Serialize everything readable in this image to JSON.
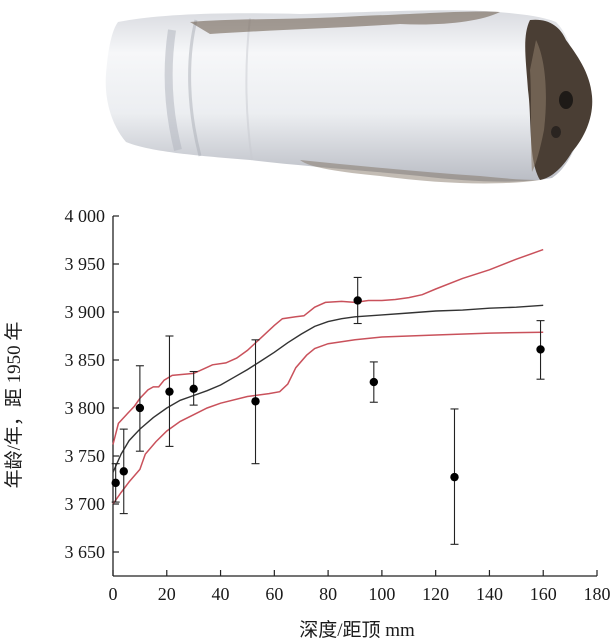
{
  "photo": {
    "subject": "sample-core-photograph",
    "colors": {
      "body": "#f2f3f5",
      "shadow": "#c9ccd3",
      "stain": "#5a4a3a",
      "dark": "#2a2420"
    }
  },
  "chart_data": {
    "type": "scatter",
    "xlabel": "深度/距顶 mm",
    "ylabel": "年龄/年，距 1950 年",
    "xlim": [
      0,
      180
    ],
    "ylim": [
      3625,
      4000
    ],
    "x_ticks": [
      0,
      20,
      40,
      60,
      80,
      100,
      120,
      140,
      160,
      180
    ],
    "x_tick_labels": [
      "0",
      "20",
      "40",
      "60",
      "80",
      "100",
      "120",
      "140",
      "160",
      "180"
    ],
    "y_ticks": [
      3650,
      3700,
      3750,
      3800,
      3850,
      3900,
      3950,
      4000
    ],
    "y_tick_labels": [
      "3 650",
      "3 700",
      "3 750",
      "3 800",
      "3 850",
      "3 900",
      "3 950",
      "4 000"
    ],
    "grid": false,
    "points": [
      {
        "x": 1,
        "y": 3722,
        "err_low": 3702,
        "err_high": 3742
      },
      {
        "x": 4,
        "y": 3734,
        "err_low": 3690,
        "err_high": 3778
      },
      {
        "x": 10,
        "y": 3800,
        "err_low": 3755,
        "err_high": 3844
      },
      {
        "x": 21,
        "y": 3817,
        "err_low": 3760,
        "err_high": 3875
      },
      {
        "x": 30,
        "y": 3820,
        "err_low": 3803,
        "err_high": 3838
      },
      {
        "x": 53,
        "y": 3807,
        "err_low": 3742,
        "err_high": 3871
      },
      {
        "x": 91,
        "y": 3912,
        "err_low": 3888,
        "err_high": 3936
      },
      {
        "x": 97,
        "y": 3827,
        "err_low": 3806,
        "err_high": 3848
      },
      {
        "x": 127,
        "y": 3728,
        "err_low": 3658,
        "err_high": 3799
      },
      {
        "x": 159,
        "y": 3861,
        "err_low": 3830,
        "err_high": 3891
      }
    ],
    "series": [
      {
        "role": "model-mean",
        "color": "#333333",
        "points": [
          [
            0,
            3733
          ],
          [
            3,
            3752
          ],
          [
            6,
            3766
          ],
          [
            10,
            3778
          ],
          [
            15,
            3790
          ],
          [
            20,
            3800
          ],
          [
            25,
            3808
          ],
          [
            30,
            3813
          ],
          [
            35,
            3818
          ],
          [
            40,
            3824
          ],
          [
            45,
            3832
          ],
          [
            50,
            3840
          ],
          [
            55,
            3849
          ],
          [
            60,
            3858
          ],
          [
            65,
            3868
          ],
          [
            70,
            3877
          ],
          [
            75,
            3885
          ],
          [
            80,
            3890
          ],
          [
            85,
            3893
          ],
          [
            90,
            3895
          ],
          [
            100,
            3897
          ],
          [
            110,
            3899
          ],
          [
            120,
            3901
          ],
          [
            130,
            3902
          ],
          [
            140,
            3904
          ],
          [
            150,
            3905
          ],
          [
            160,
            3907
          ]
        ]
      },
      {
        "role": "upper-bound",
        "color": "#c9515b",
        "points": [
          [
            0,
            3762
          ],
          [
            2,
            3784
          ],
          [
            5,
            3793
          ],
          [
            8,
            3802
          ],
          [
            10,
            3810
          ],
          [
            13,
            3819
          ],
          [
            15,
            3822
          ],
          [
            17,
            3822
          ],
          [
            19,
            3829
          ],
          [
            22,
            3834
          ],
          [
            26,
            3835
          ],
          [
            30,
            3836
          ],
          [
            34,
            3841
          ],
          [
            37,
            3845
          ],
          [
            42,
            3847
          ],
          [
            46,
            3852
          ],
          [
            50,
            3860
          ],
          [
            55,
            3873
          ],
          [
            60,
            3886
          ],
          [
            63,
            3893
          ],
          [
            68,
            3895
          ],
          [
            71,
            3896
          ],
          [
            75,
            3905
          ],
          [
            79,
            3910
          ],
          [
            85,
            3911
          ],
          [
            90,
            3910
          ],
          [
            95,
            3912
          ],
          [
            100,
            3912
          ],
          [
            105,
            3913
          ],
          [
            110,
            3915
          ],
          [
            115,
            3918
          ],
          [
            120,
            3924
          ],
          [
            130,
            3935
          ],
          [
            140,
            3944
          ],
          [
            150,
            3955
          ],
          [
            160,
            3965
          ]
        ]
      },
      {
        "role": "lower-bound",
        "color": "#c9515b",
        "points": [
          [
            0,
            3700
          ],
          [
            3,
            3712
          ],
          [
            6,
            3723
          ],
          [
            10,
            3736
          ],
          [
            12,
            3752
          ],
          [
            16,
            3765
          ],
          [
            20,
            3776
          ],
          [
            25,
            3786
          ],
          [
            30,
            3793
          ],
          [
            35,
            3800
          ],
          [
            40,
            3805
          ],
          [
            50,
            3812
          ],
          [
            58,
            3815
          ],
          [
            62,
            3817
          ],
          [
            65,
            3825
          ],
          [
            68,
            3842
          ],
          [
            72,
            3855
          ],
          [
            75,
            3862
          ],
          [
            80,
            3867
          ],
          [
            90,
            3871
          ],
          [
            100,
            3874
          ],
          [
            120,
            3876
          ],
          [
            140,
            3878
          ],
          [
            160,
            3879
          ]
        ]
      }
    ]
  }
}
